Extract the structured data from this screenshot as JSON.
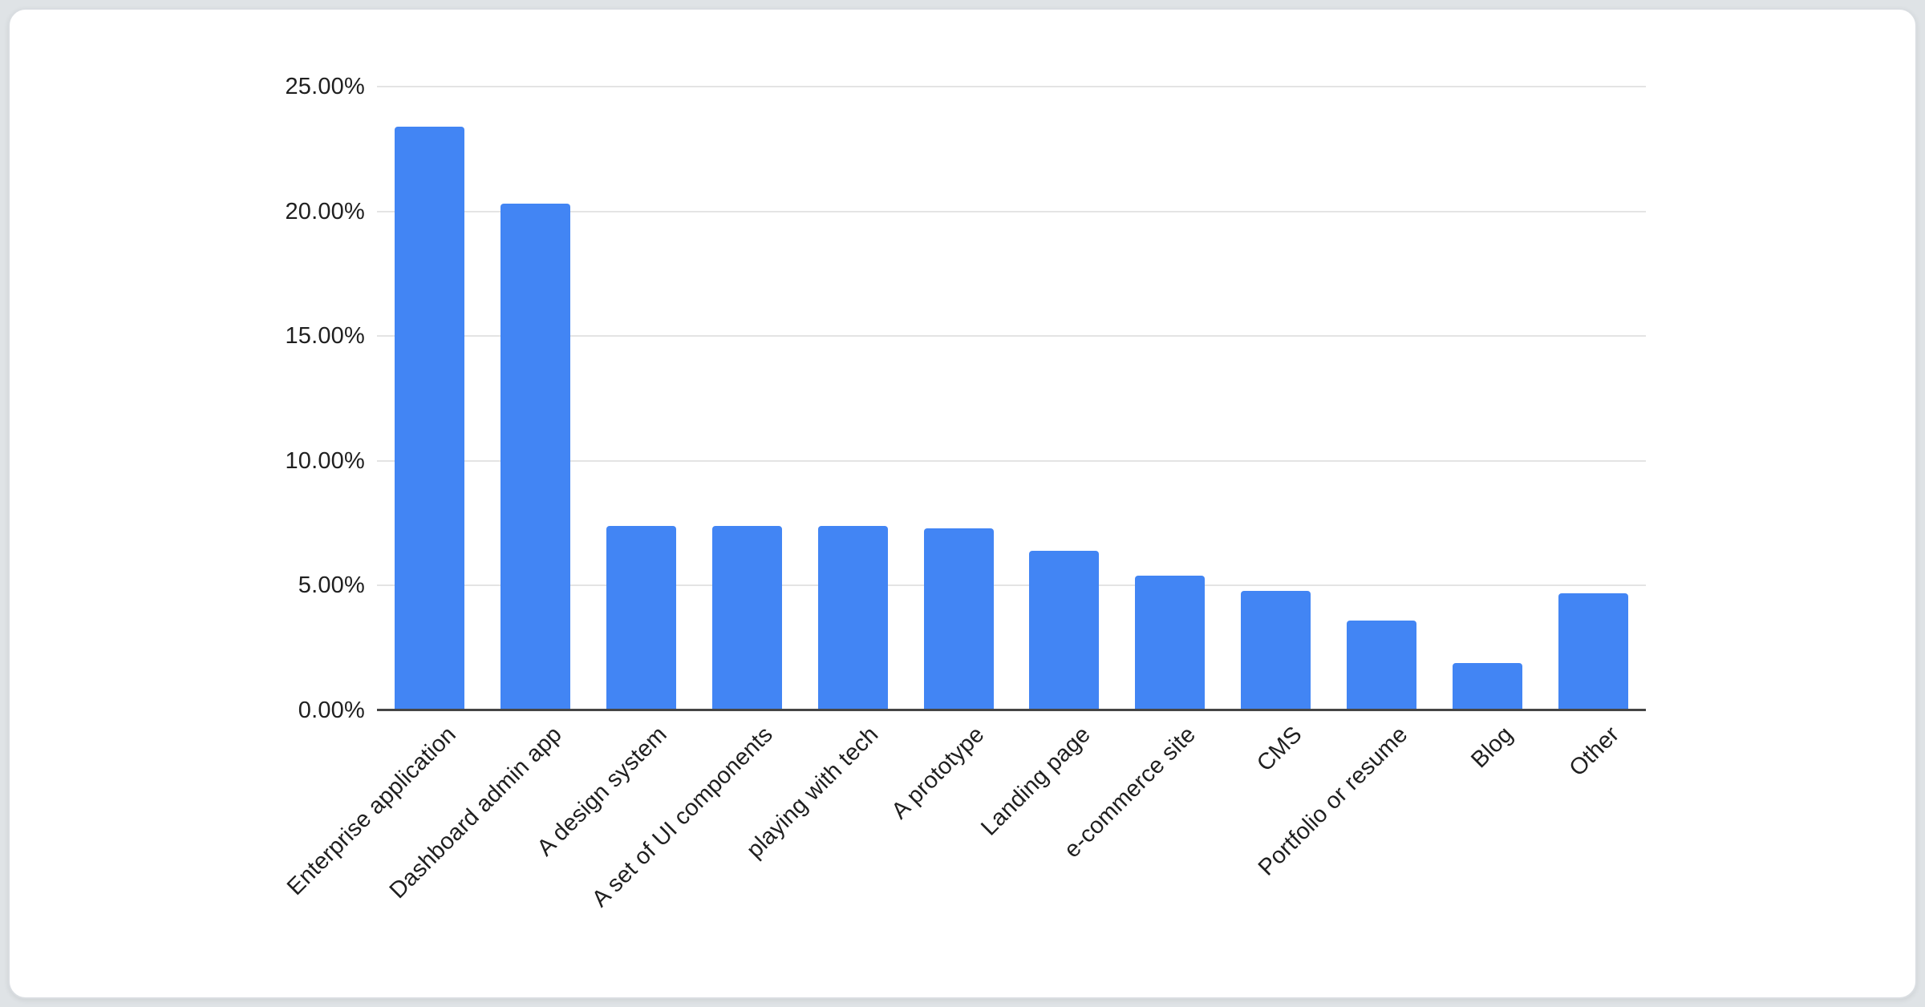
{
  "page": {
    "background_color": "#dfe3e6",
    "card_background": "#ffffff",
    "card_border_color": "#d9dde1"
  },
  "chart_data": {
    "type": "bar",
    "title": "",
    "xlabel": "",
    "ylabel": "",
    "legend": "none",
    "grid": true,
    "x_label_rotation": -45,
    "categories": [
      "Enterprise application",
      "Dashboard admin app",
      "A design system",
      "A set of UI components",
      "playing with tech",
      "A prototype",
      "Landing page",
      "e-commerce site",
      "CMS",
      "Portfolio or resume",
      "Blog",
      "Other"
    ],
    "values": [
      23.4,
      20.3,
      7.4,
      7.4,
      7.4,
      7.3,
      6.4,
      5.4,
      4.8,
      3.6,
      1.9,
      4.7
    ],
    "unit": "%",
    "y_axis": {
      "min": 0,
      "max": 25,
      "step": 5,
      "ticks": [
        "0.00%",
        "5.00%",
        "10.00%",
        "15.00%",
        "20.00%",
        "25.00%"
      ]
    },
    "bar_color": "#4285f4",
    "gridline_color": "#e4e4e4",
    "axis_line_color": "#454545",
    "label_color": "#1f1f1f"
  }
}
